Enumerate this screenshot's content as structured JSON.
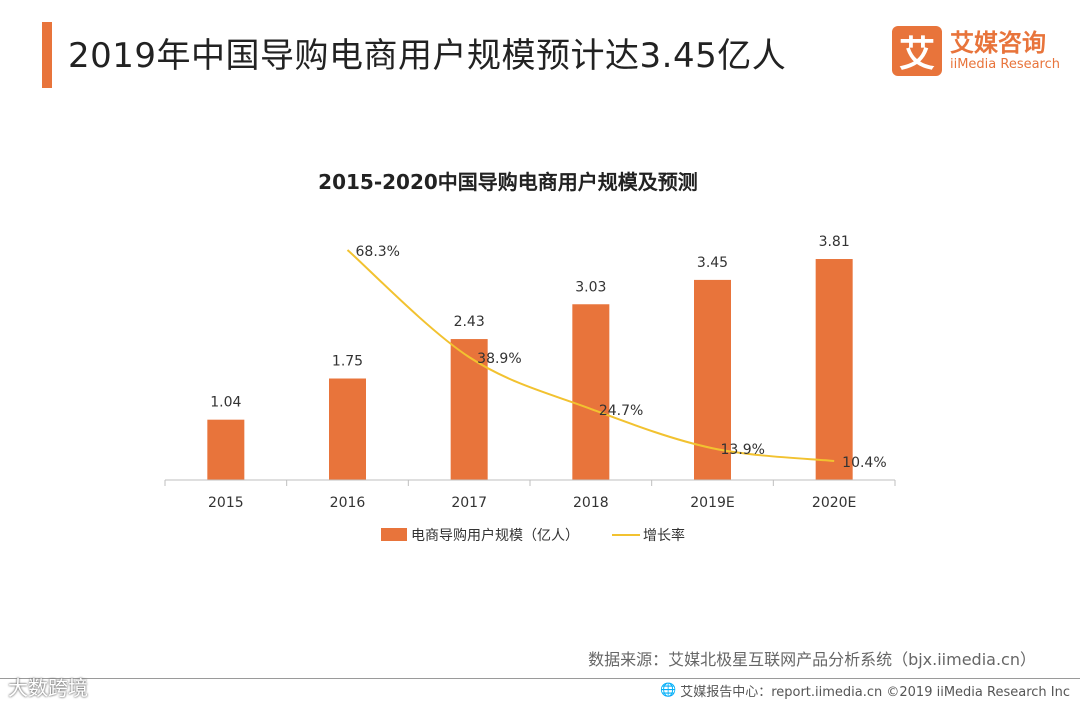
{
  "header": {
    "title": "2019年中国导购电商用户规模预计达3.45亿人"
  },
  "logo": {
    "mark": "艾",
    "name_cn": "艾媒咨询",
    "name_en": "iiMedia Research"
  },
  "chart_data": {
    "type": "bar",
    "title": "2015-2020中国导购电商用户规模及预测",
    "categories": [
      "2015",
      "2016",
      "2017",
      "2018",
      "2019E",
      "2020E"
    ],
    "series": [
      {
        "name": "电商导购用户规模（亿人）",
        "type": "bar",
        "color": "#e8743b",
        "values": [
          1.04,
          1.75,
          2.43,
          3.03,
          3.45,
          3.81
        ],
        "labels": [
          "1.04",
          "1.75",
          "2.43",
          "3.03",
          "3.45",
          "3.81"
        ]
      },
      {
        "name": "增长率",
        "type": "line",
        "color": "#f2c230",
        "values": [
          null,
          68.3,
          38.9,
          24.7,
          13.9,
          10.4
        ],
        "labels": [
          "",
          "68.3%",
          "38.9%",
          "24.7%",
          "13.9%",
          "10.4%"
        ]
      }
    ],
    "ylim": [
      0,
      4.0
    ],
    "ylim_secondary": [
      -10,
      75
    ],
    "legend_position": "bottom-center",
    "grid": false
  },
  "source": {
    "text": "数据来源：艾媒北极星互联网产品分析系统（bjx.iimedia.cn）"
  },
  "footer": {
    "icon": "globe-icon",
    "text": "艾媒报告中心：report.iimedia.cn  ©2019  iiMedia Research  Inc"
  },
  "watermark": {
    "text": "大数跨境"
  }
}
